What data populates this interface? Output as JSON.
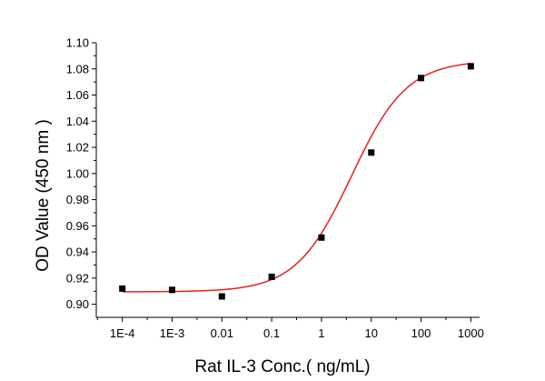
{
  "chart_data": {
    "type": "scatter",
    "title": "",
    "xlabel": "Rat  IL-3 Conc.( ng/mL)",
    "ylabel": "OD Value (450 nm )",
    "x_scale": "log",
    "xlim": [
      3e-05,
      1500
    ],
    "ylim": [
      0.89,
      1.1
    ],
    "x_ticks": [
      0.0001,
      0.001,
      0.01,
      0.1,
      1,
      10,
      100,
      1000
    ],
    "x_tick_labels": [
      "1E-4",
      "1E-3",
      "0.01",
      "0.1",
      "1",
      "10",
      "100",
      "1000"
    ],
    "y_ticks": [
      0.9,
      0.92,
      0.94,
      0.96,
      0.98,
      1.0,
      1.02,
      1.04,
      1.06,
      1.08,
      1.1
    ],
    "y_tick_labels": [
      "0.90",
      "0.92",
      "0.94",
      "0.96",
      "0.98",
      "1.00",
      "1.02",
      "1.04",
      "1.06",
      "1.08",
      "1.10"
    ],
    "grid": false,
    "legend": "none",
    "series": [
      {
        "kind": "points",
        "color": "#000000",
        "x": [
          0.0001,
          0.001,
          0.01,
          0.1,
          1,
          10,
          100,
          1000
        ],
        "y": [
          0.912,
          0.911,
          0.906,
          0.921,
          0.951,
          1.016,
          1.073,
          1.082
        ]
      },
      {
        "kind": "fit-curve",
        "model": "4PL",
        "color": "#e8211a",
        "bottom": 0.9095,
        "top": 1.0865,
        "ec50": 4.0,
        "hill": 0.78,
        "x_range": [
          0.0001,
          1000
        ]
      }
    ]
  }
}
